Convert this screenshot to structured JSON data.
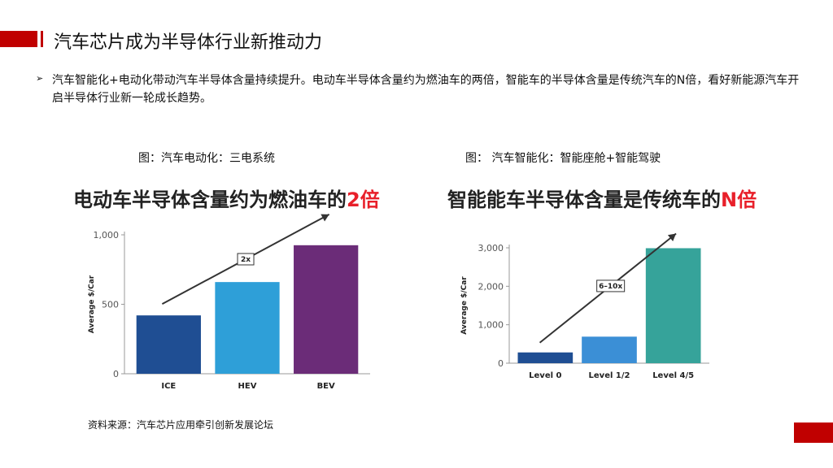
{
  "header": {
    "title": "汽车芯片成为半导体行业新推动力"
  },
  "bullet": {
    "symbol": "➢",
    "text": "汽车智能化+电动化带动汽车半导体含量持续提升。电动车半导体含量约为燃油车的两倍，智能车的半导体含量是传统汽车的N倍，看好新能源汽车开启半导体行业新一轮成长趋势。"
  },
  "captions": {
    "left": "图：汽车电动化：三电系统",
    "right": "图： 汽车智能化：智能座舱+智能驾驶"
  },
  "source": "资料来源：汽车芯片应用牵引创新发展论坛",
  "colors": {
    "brand": "#c00000",
    "highlight": "#e8202a"
  },
  "chart_data": [
    {
      "type": "bar",
      "title": "电动车半导体含量约为燃油车的",
      "title_highlight": "2倍",
      "ylabel": "Average $/Car",
      "categories": [
        "ICE",
        "HEV",
        "BEV"
      ],
      "values": [
        420,
        660,
        925
      ],
      "colors": [
        "#1f4e93",
        "#2e9fd8",
        "#6b2c78"
      ],
      "ylim": [
        0,
        1000
      ],
      "yticks": [
        0,
        500,
        1000
      ],
      "ytick_labels": [
        "0",
        "500",
        "1,000"
      ],
      "annotation": "2x",
      "grid": false
    },
    {
      "type": "bar",
      "title": "智能能车半导体含量是传统车的",
      "title_highlight": "N倍",
      "ylabel": "Average $/Car",
      "categories": [
        "Level 0",
        "Level 1/2",
        "Level 4/5"
      ],
      "values": [
        280,
        690,
        2990
      ],
      "colors": [
        "#1f4e93",
        "#3b8fd6",
        "#36a39a"
      ],
      "ylim": [
        0,
        3000
      ],
      "yticks": [
        0,
        1000,
        2000,
        3000
      ],
      "ytick_labels": [
        "0",
        "1,000",
        "2,000",
        "3,000"
      ],
      "annotation": "6–10x",
      "grid": false
    }
  ]
}
